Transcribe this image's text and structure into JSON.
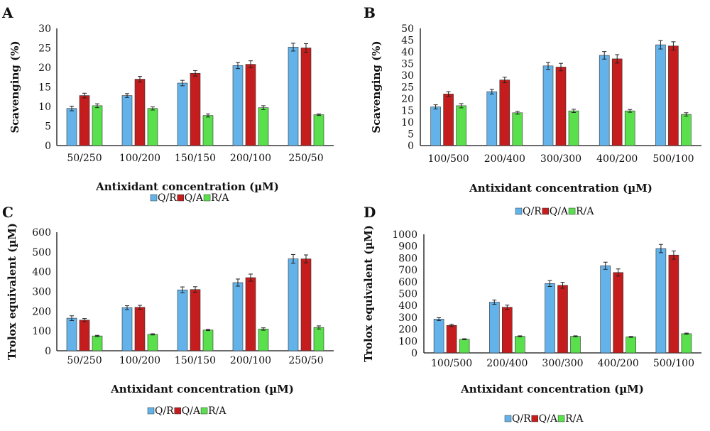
{
  "colors": {
    "Q/R": "#63b3ea",
    "Q/A": "#c51d1d",
    "R/A": "#59e04c"
  },
  "chart_data": [
    {
      "panel": "A",
      "type": "bar",
      "categories": [
        "50/250",
        "100/200",
        "150/150",
        "200/100",
        "250/50"
      ],
      "ylabel": "Scavenging (%)",
      "xlabel": "Antixidant concentration (µM)",
      "ylim": [
        0,
        30
      ],
      "yticks": [
        0,
        5,
        10,
        15,
        20,
        25,
        30
      ],
      "series": [
        {
          "name": "Q/R",
          "values": [
            9.5,
            12.8,
            16,
            20.5,
            25.2
          ],
          "errors": [
            0.6,
            0.5,
            0.7,
            0.8,
            1.0
          ]
        },
        {
          "name": "Q/A",
          "values": [
            12.8,
            17,
            18.5,
            20.8,
            25
          ],
          "errors": [
            0.6,
            0.7,
            0.7,
            0.9,
            1.1
          ]
        },
        {
          "name": "R/A",
          "values": [
            10.2,
            9.5,
            7.7,
            9.7,
            7.9
          ],
          "errors": [
            0.5,
            0.4,
            0.4,
            0.5,
            0.2
          ]
        }
      ]
    },
    {
      "panel": "B",
      "type": "bar",
      "categories": [
        "100/500",
        "200/400",
        "300/300",
        "400/200",
        "500/100"
      ],
      "ylabel": "Scavenging (%)",
      "xlabel": "Antixidant concentration (µM)",
      "ylim": [
        0,
        50
      ],
      "yticks": [
        0,
        5,
        10,
        15,
        20,
        25,
        30,
        35,
        40,
        45,
        50
      ],
      "series": [
        {
          "name": "Q/R",
          "values": [
            16.5,
            23,
            34,
            38.5,
            43
          ],
          "errors": [
            0.9,
            1.0,
            1.5,
            1.6,
            1.8
          ]
        },
        {
          "name": "Q/A",
          "values": [
            22,
            28,
            33.5,
            37,
            42.5
          ],
          "errors": [
            1.0,
            1.2,
            1.6,
            1.8,
            1.8
          ]
        },
        {
          "name": "R/A",
          "values": [
            17,
            14,
            14.8,
            14.8,
            13.3
          ],
          "errors": [
            0.9,
            0.6,
            0.7,
            0.6,
            0.7
          ]
        }
      ]
    },
    {
      "panel": "C",
      "type": "bar",
      "categories": [
        "50/250",
        "100/200",
        "150/150",
        "200/100",
        "250/50"
      ],
      "ylabel": "Trolox equivalent (µM)",
      "xlabel": "Antixidant concentration (µM)",
      "ylim": [
        0,
        600
      ],
      "yticks": [
        0,
        100,
        200,
        300,
        400,
        500,
        600
      ],
      "series": [
        {
          "name": "Q/R",
          "values": [
            165,
            218,
            308,
            345,
            465
          ],
          "errors": [
            12,
            10,
            15,
            18,
            22
          ]
        },
        {
          "name": "Q/A",
          "values": [
            155,
            220,
            310,
            370,
            465
          ],
          "errors": [
            8,
            10,
            14,
            18,
            20
          ]
        },
        {
          "name": "R/A",
          "values": [
            75,
            83,
            105,
            110,
            118
          ],
          "errors": [
            3,
            3,
            3,
            6,
            8
          ]
        }
      ]
    },
    {
      "panel": "D",
      "type": "bar",
      "categories": [
        "100/500",
        "200/400",
        "300/300",
        "400/200",
        "500/100"
      ],
      "ylabel": "Trolox equivalent (µM)",
      "xlabel": "Antixidant concentration (µM)",
      "ylim": [
        0,
        1000
      ],
      "yticks": [
        0,
        100,
        200,
        300,
        400,
        500,
        600,
        700,
        800,
        900,
        1000
      ],
      "series": [
        {
          "name": "Q/R",
          "values": [
            285,
            428,
            585,
            735,
            880
          ],
          "errors": [
            12,
            18,
            25,
            30,
            35
          ]
        },
        {
          "name": "Q/A",
          "values": [
            232,
            385,
            570,
            678,
            825
          ],
          "errors": [
            10,
            18,
            25,
            30,
            35
          ]
        },
        {
          "name": "R/A",
          "values": [
            115,
            140,
            140,
            135,
            162
          ],
          "errors": [
            4,
            4,
            4,
            4,
            5
          ]
        }
      ]
    }
  ]
}
